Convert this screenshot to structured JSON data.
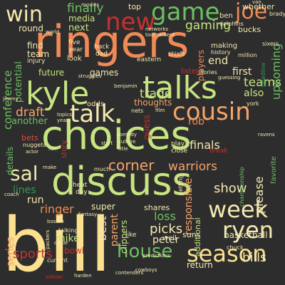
{
  "words": {
    "bill": "bill",
    "choices": "choices",
    "ringers": "ringers",
    "discuss": "discuss",
    "talks": "talks",
    "kyle": "kyle",
    "cousin": "cousin",
    "talk": "talk",
    "game": "game",
    "joe": "joe",
    "new": "new",
    "win": "win",
    "season": "season",
    "week": "week",
    "ryen": "ryen",
    "sal": "sal",
    "house": "house",
    "sports": "sports",
    "corner": "corner",
    "warriors": "warriors",
    "trade": "trade",
    "gaming": "gaming",
    "finally": "finally",
    "media": "media",
    "next": "next",
    "conference": "conference",
    "teams": "teams",
    "draft": "draft",
    "ringer": "ringer",
    "show": "show",
    "loss": "loss",
    "picks": "picks",
    "peter": "peter",
    "mike": "mike",
    "bills": "bills",
    "finals": "finals",
    "first": "first",
    "upcoming": "upcoming",
    "responsible": "responsible",
    "please": "please",
    "series": "series",
    "best": "best",
    "parent": "parent",
    "lines": "lines",
    "potential": "potential",
    "another": "another",
    "details": "details",
    "future": "future",
    "games": "games",
    "round": "round",
    "find": "find",
    "team": "team",
    "end": "end",
    "also": "also",
    "rob": "rob",
    "bets": "bets",
    "run": "run",
    "super": "super",
    "shares": "shares",
    "clippers": "clippers",
    "basketball": "basketball",
    "return": "return",
    "bowl": "bowl",
    "additional": "additional",
    "guess": "guess",
    "thoughts": "thoughts",
    "networks": "networks",
    "tournament": "tournament",
    "whether": "whether",
    "dolphins": "dolphins",
    "bucks": "bucks",
    "making": "making",
    "history": "history",
    "million": "million",
    "players": "players",
    "stories": "stories",
    "guessing": "guessing",
    "sixers": "sixers",
    "listen": "listen",
    "back": "back",
    "five": "five",
    "year": "year",
    "look": "look",
    "dad": "dad",
    "injury": "injury",
    "chiefs": "chiefs",
    "eastern": "eastern",
    "top": "top",
    "movies": "movies",
    "world": "world",
    "van": "van",
    "ben": "ben",
    "brady": "brady",
    "benjamin": "benjamin",
    "odds": "odds",
    "nets": "nets",
    "film": "film",
    "start": "start",
    "story": "story",
    "heat": "heat",
    "day": "day",
    "topics": "topics",
    "years": "years",
    "jimmy": "jimmy",
    "nuggets": "nuggets",
    "fan": "fan",
    "actor": "actor",
    "make": "make",
    "much": "much",
    "comedy": "comedy",
    "culture": "culture",
    "title": "title",
    "play": "play",
    "close": "close",
    "break": "break",
    "ravens": "ravens",
    "york": "york",
    "deadline": "deadline",
    "boston": "boston",
    "fantasy": "fantasy",
    "talking": "talking",
    "like": "like",
    "getting": "getting",
    "championship": "championship",
    "favorite": "favorite",
    "suns": "suns",
    "well": "well",
    "chuck": "chuck",
    "coach": "coach",
    "predictions": "predictions",
    "edition": "edition",
    "current": "current",
    "cowboys": "cowboys",
    "contenders": "contenders",
    "harden": "harden",
    "dollar": "dollar",
    "packers": "packers",
    "struggles": "struggles"
  }
}
